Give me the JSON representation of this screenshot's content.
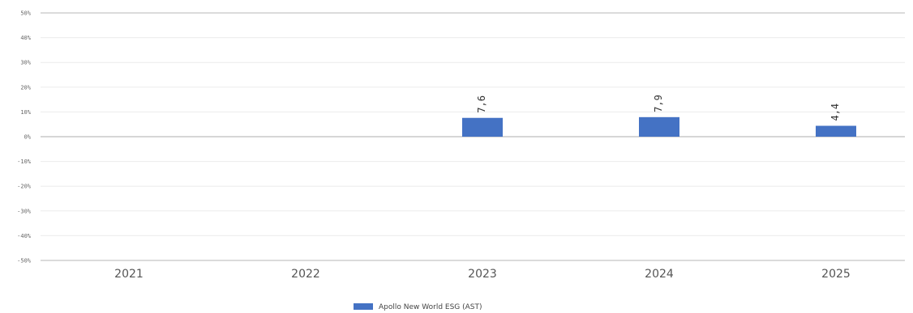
{
  "chart_data": {
    "type": "bar",
    "categories": [
      "2021",
      "2022",
      "2023",
      "2024",
      "2025"
    ],
    "series": [
      {
        "name": "Apollo New World ESG (AST)",
        "values": [
          null,
          null,
          7.6,
          7.9,
          4.4
        ],
        "labels": [
          "",
          "",
          "7,6",
          "7,9",
          "4,4"
        ],
        "color": "#4472c4"
      }
    ],
    "ylim": [
      -50,
      50
    ],
    "yticks": [
      50,
      40,
      30,
      20,
      10,
      0,
      -10,
      -20,
      -30,
      -40,
      -50
    ],
    "ytick_labels": [
      "50%",
      "40%",
      "30%",
      "20%",
      "10%",
      "0%",
      "-10%",
      "-20%",
      "-30%",
      "-40%",
      "-50%"
    ],
    "grid": true,
    "legend_position": "bottom-center",
    "title": "",
    "xlabel": "",
    "ylabel": ""
  }
}
